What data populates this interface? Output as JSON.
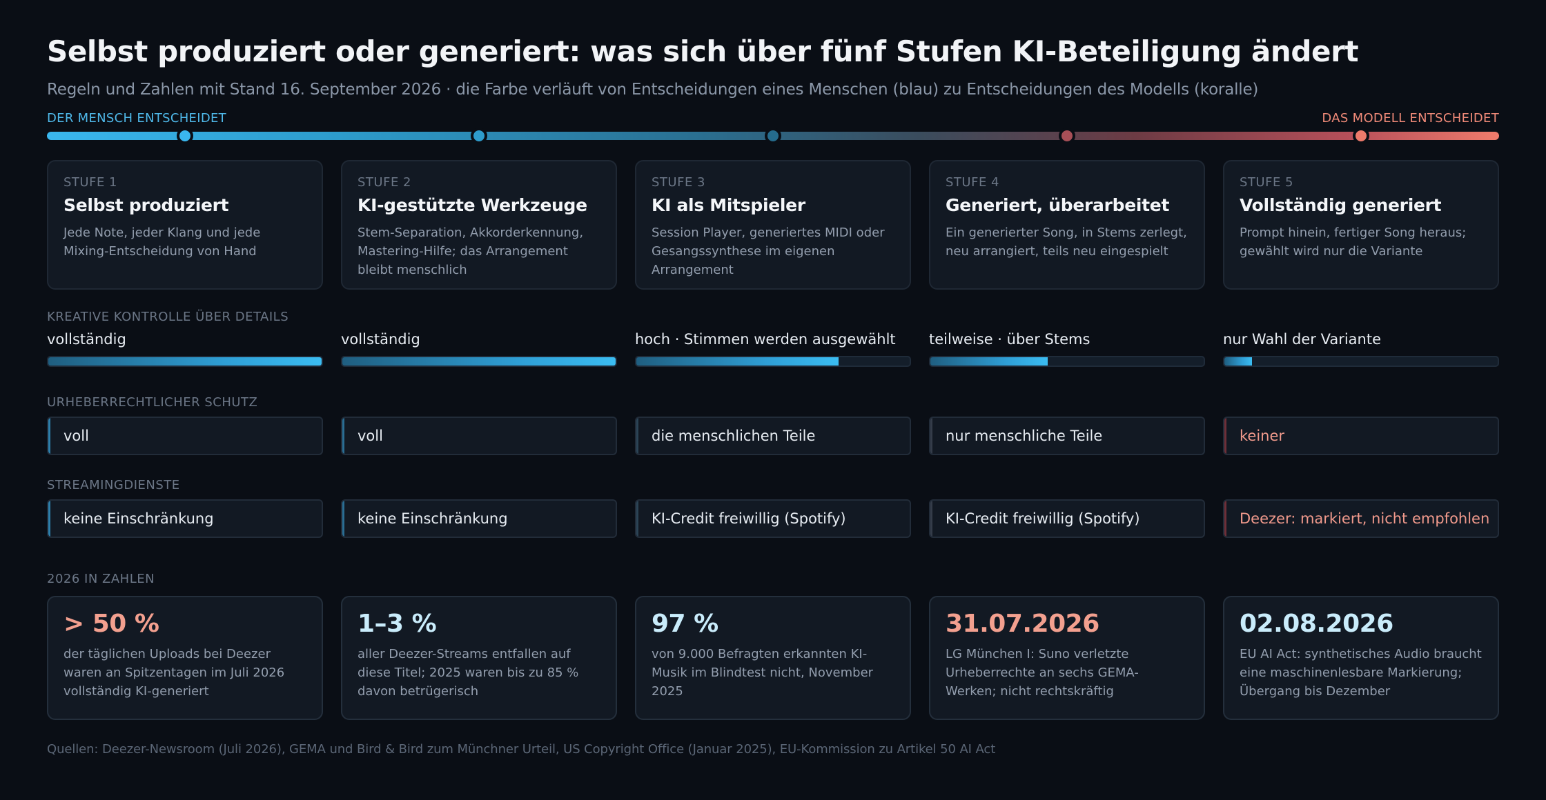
{
  "title": "Selbst produziert oder generiert: was sich über fünf Stufen KI-Beteiligung ändert",
  "subtitle": "Regeln und Zahlen mit Stand 16. September 2026 · die Farbe verläuft von Entscheidungen eines Menschen (blau) zu Entscheidungen des Modells (koralle)",
  "scale": {
    "left_label": "DER MENSCH ENTSCHEIDET",
    "right_label": "DAS MODELL ENTSCHEIDET"
  },
  "colors": {
    "human_blue": "#3ab7ee",
    "model_coral": "#f07c6c",
    "background": "#0a0e15",
    "card": "#121923"
  },
  "stages": [
    {
      "number": "STUFE 1",
      "name": "Selbst produziert",
      "description": "Jede Note, jeder Klang und jede Mixing-Entscheidung von Hand",
      "dot_color": "#3ab7ee",
      "control_label": "vollständig",
      "control_level": 1.0,
      "copyright": "voll",
      "copyright_accent": "#2d7fab",
      "copyright_text_color": "#e7ecf2",
      "streaming": "keine Einschränkung",
      "streaming_accent": "#2d7fab",
      "streaming_text_color": "#e7ecf2"
    },
    {
      "number": "STUFE 2",
      "name": "KI-gestützte Werkzeuge",
      "description": "Stem-Separation, Akkorderkennung, Mastering-Hilfe; das Arrangement bleibt menschlich",
      "dot_color": "#2e9ccc",
      "control_label": "vollständig",
      "control_level": 1.0,
      "copyright": "voll",
      "copyright_accent": "#2a6d93",
      "copyright_text_color": "#e7ecf2",
      "streaming": "keine Einschränkung",
      "streaming_accent": "#2a6d93",
      "streaming_text_color": "#e7ecf2"
    },
    {
      "number": "STUFE 3",
      "name": "KI als Mitspieler",
      "description": "Session Player, generiertes MIDI oder Gesangssynthese im eigenen Arrangement",
      "dot_color": "#256b8c",
      "control_label": "hoch · Stimmen werden ausgewählt",
      "control_level": 0.74,
      "copyright": "die menschlichen Teile",
      "copyright_accent": "#2b4456",
      "copyright_text_color": "#e7ecf2",
      "streaming": "KI-Credit freiwillig (Spotify)",
      "streaming_accent": "#2b4456",
      "streaming_text_color": "#e7ecf2"
    },
    {
      "number": "STUFE 4",
      "name": "Generiert, überarbeitet",
      "description": "Ein generierter Song, in Stems zerlegt, neu arrangiert, teils neu eingespielt",
      "dot_color": "#a74f57",
      "control_label": "teilweise · über Stems",
      "control_level": 0.43,
      "copyright": "nur menschliche Teile",
      "copyright_accent": "#343c49",
      "copyright_text_color": "#e7ecf2",
      "streaming": "KI-Credit freiwillig (Spotify)",
      "streaming_accent": "#343c49",
      "streaming_text_color": "#e7ecf2"
    },
    {
      "number": "STUFE 5",
      "name": "Vollständig generiert",
      "description": "Prompt hinein, fertiger Song heraus; gewählt wird nur die Variante",
      "dot_color": "#ee7a6b",
      "control_label": "nur Wahl der Variante",
      "control_level": 0.1,
      "copyright": "keiner",
      "copyright_accent": "#6e2f38",
      "copyright_text_color": "#f19a8c",
      "streaming": "Deezer: markiert, nicht empfohlen",
      "streaming_accent": "#6e2f38",
      "streaming_text_color": "#f19a8c"
    }
  ],
  "sections": {
    "control": "KREATIVE KONTROLLE ÜBER DETAILS",
    "copyright": "URHEBERRECHTLICHER SCHUTZ",
    "streaming": "STREAMINGDIENSTE",
    "stats": "2026 IN ZAHLEN"
  },
  "stats": [
    {
      "value": "> 50 %",
      "color": "#f3a08f",
      "description": "der täglichen Uploads bei Deezer waren an Spitzentagen im Juli 2026 vollständig KI-generiert"
    },
    {
      "value": "1–3 %",
      "color": "#c9ecfb",
      "description": "aller Deezer-Streams entfallen auf diese Titel; 2025 waren bis zu 85 % davon betrügerisch"
    },
    {
      "value": "97 %",
      "color": "#c9ecfb",
      "description": "von 9.000 Befragten erkannten KI-Musik im Blindtest nicht, November 2025"
    },
    {
      "value": "31.07.2026",
      "color": "#f3a08f",
      "description": "LG München I: Suno verletzte Urheberrechte an sechs GEMA-Werken; nicht rechtskräftig"
    },
    {
      "value": "02.08.2026",
      "color": "#c9ecfb",
      "description": "EU AI Act: synthetisches Audio braucht eine maschinenlesbare Markierung; Übergang bis Dezember"
    }
  ],
  "sources": "Quellen: Deezer-Newsroom (Juli 2026), GEMA und Bird & Bird zum Münchner Urteil, US Copyright Office (Januar 2025), EU-Kommission zu Artikel 50 AI Act"
}
